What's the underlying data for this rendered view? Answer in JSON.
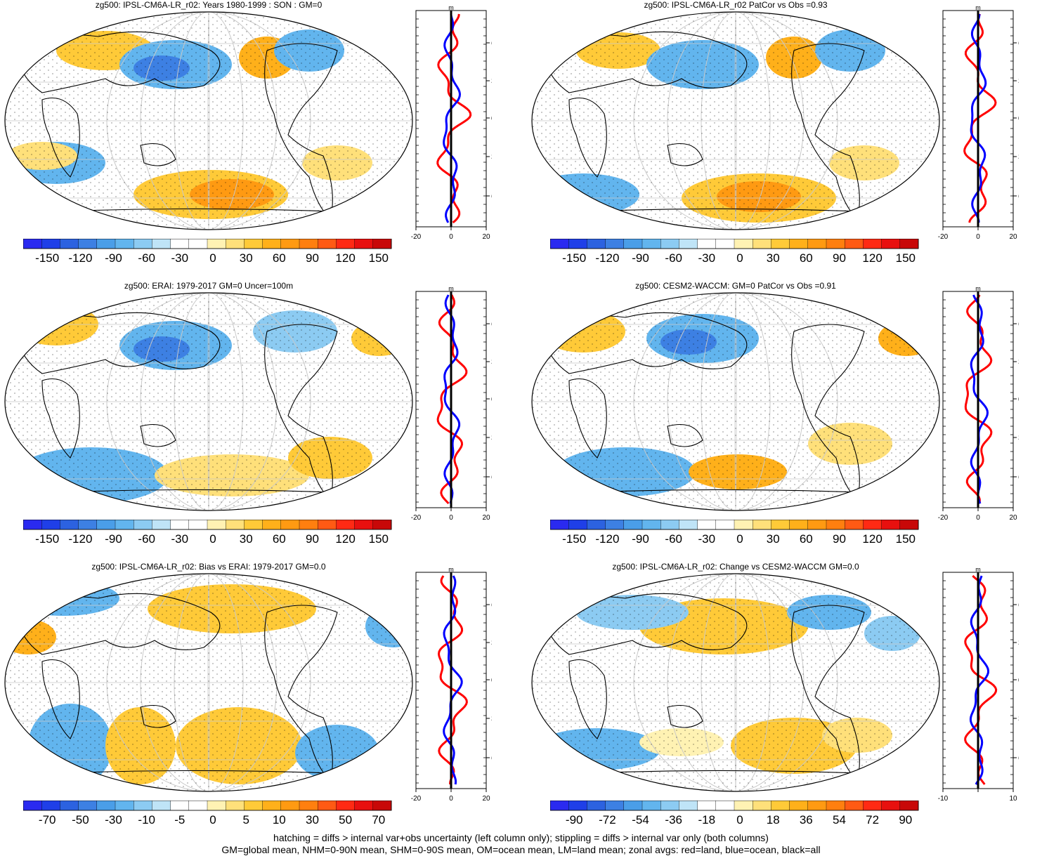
{
  "panels": [
    {
      "title": "zg500: IPSL-CM6A-LR_r02: Years 1980-1999 : SON : GM=0",
      "colorbar_labels": [
        "-150",
        "-120",
        "-90",
        "-60",
        "-30",
        "0",
        "30",
        "60",
        "90",
        "120",
        "150"
      ],
      "zonal_x_ticks": [
        "-20",
        "0",
        "20"
      ],
      "zonal_unit": "m",
      "lat_labels": [
        "60N",
        "30N",
        "0",
        "30S",
        "60S"
      ]
    },
    {
      "title": "zg500: IPSL-CM6A-LR_r02 PatCor vs Obs =0.93",
      "colorbar_labels": [
        "-150",
        "-120",
        "-90",
        "-60",
        "-30",
        "0",
        "30",
        "60",
        "90",
        "120",
        "150"
      ],
      "zonal_x_ticks": [
        "-20",
        "0",
        "20"
      ],
      "zonal_unit": "m",
      "lat_labels": [
        "60N",
        "30N",
        "0",
        "30S",
        "60S"
      ]
    },
    {
      "title": "zg500: ERAI: 1979-2017 GM=0 Uncer=100m",
      "colorbar_labels": [
        "-150",
        "-120",
        "-90",
        "-60",
        "-30",
        "0",
        "30",
        "60",
        "90",
        "120",
        "150"
      ],
      "zonal_x_ticks": [
        "-20",
        "0",
        "20"
      ],
      "zonal_unit": "m",
      "lat_labels": [
        "60N",
        "30N",
        "0",
        "30S",
        "60S"
      ]
    },
    {
      "title": "zg500: CESM2-WACCM: GM=0 PatCor vs Obs =0.91",
      "colorbar_labels": [
        "-150",
        "-120",
        "-90",
        "-60",
        "-30",
        "0",
        "30",
        "60",
        "90",
        "120",
        "150"
      ],
      "zonal_x_ticks": [
        "-20",
        "0",
        "20"
      ],
      "zonal_unit": "m",
      "lat_labels": [
        "60N",
        "30N",
        "0",
        "30S",
        "60S"
      ]
    },
    {
      "title": "zg500: IPSL-CM6A-LR_r02: Bias vs ERAI: 1979-2017  GM=0.0",
      "colorbar_labels": [
        "-70",
        "-50",
        "-30",
        "-10",
        "-5",
        "0",
        "5",
        "10",
        "30",
        "50",
        "70"
      ],
      "zonal_x_ticks": [
        "-20",
        "0",
        "20"
      ],
      "zonal_unit": "m",
      "lat_labels": [
        "60N",
        "30N",
        "0",
        "30S",
        "60S"
      ]
    },
    {
      "title": "zg500: IPSL-CM6A-LR_r02: Change vs CESM2-WACCM GM=0.0",
      "colorbar_labels": [
        "-90",
        "-72",
        "-54",
        "-36",
        "-18",
        "0",
        "18",
        "36",
        "54",
        "72",
        "90"
      ],
      "zonal_x_ticks": [
        "-10",
        "",
        "10"
      ],
      "zonal_unit": "m",
      "lat_labels": [
        "60N",
        "30N",
        "0",
        "30S",
        "60S"
      ]
    }
  ],
  "colorbar_colors": [
    "#2a2af0",
    "#1f3fe8",
    "#2c62e0",
    "#3d80e3",
    "#4a9ee8",
    "#62b5ee",
    "#8ccbf2",
    "#bfe4f7",
    "#ffffff",
    "#ffffff",
    "#fff2b3",
    "#ffe07a",
    "#ffca38",
    "#ffb01a",
    "#ff9a12",
    "#ff7f0f",
    "#ff5a14",
    "#ff2a14",
    "#e8100f",
    "#c80808"
  ],
  "zonal_colors": {
    "land": "#ff0000",
    "ocean": "#0000ff",
    "all": "#000000"
  },
  "footer": {
    "line1": "hatching = diffs > internal var+obs uncertainty (left column only); stippling = diffs > internal var only (both columns)",
    "line2": "GM=global mean, NHM=0-90N mean, SHM=0-90S mean, OM=ocean mean, LM=land mean; zonal avgs: red=land, blue=ocean, black=all"
  }
}
